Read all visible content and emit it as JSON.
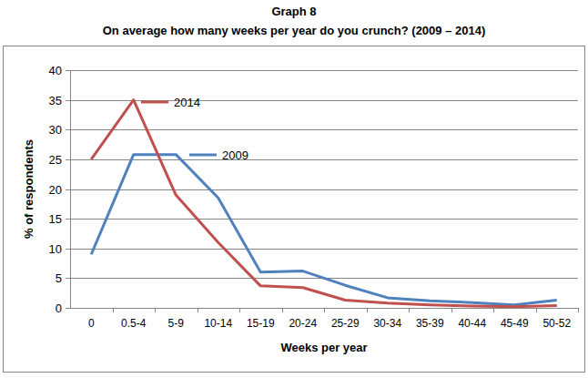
{
  "chart_data": {
    "type": "line",
    "title": "Graph 8",
    "subtitle": "On average how many weeks per year do you crunch? (2009 – 2014)",
    "x_label": "Weeks per year",
    "y_label": "% of respondents",
    "categories": [
      "0",
      "0.5-4",
      "5-9",
      "10-14",
      "15-19",
      "20-24",
      "25-29",
      "30-34",
      "35-39",
      "40-44",
      "45-49",
      "50-52"
    ],
    "series": [
      {
        "name": "2009",
        "color": "#4f81bd",
        "values": [
          9,
          25.8,
          25.8,
          18.5,
          6,
          6.2,
          3.8,
          1.7,
          1.2,
          0.9,
          0.5,
          1.3
        ]
      },
      {
        "name": "2014",
        "color": "#c0504d",
        "values": [
          25,
          35,
          19,
          11,
          3.7,
          3.4,
          1.3,
          0.8,
          0.5,
          0.3,
          0.2,
          0.4
        ]
      }
    ],
    "ylim": [
      0,
      40
    ],
    "yticks": [
      0,
      5,
      10,
      15,
      20,
      25,
      30,
      35,
      40
    ],
    "grid": true
  }
}
